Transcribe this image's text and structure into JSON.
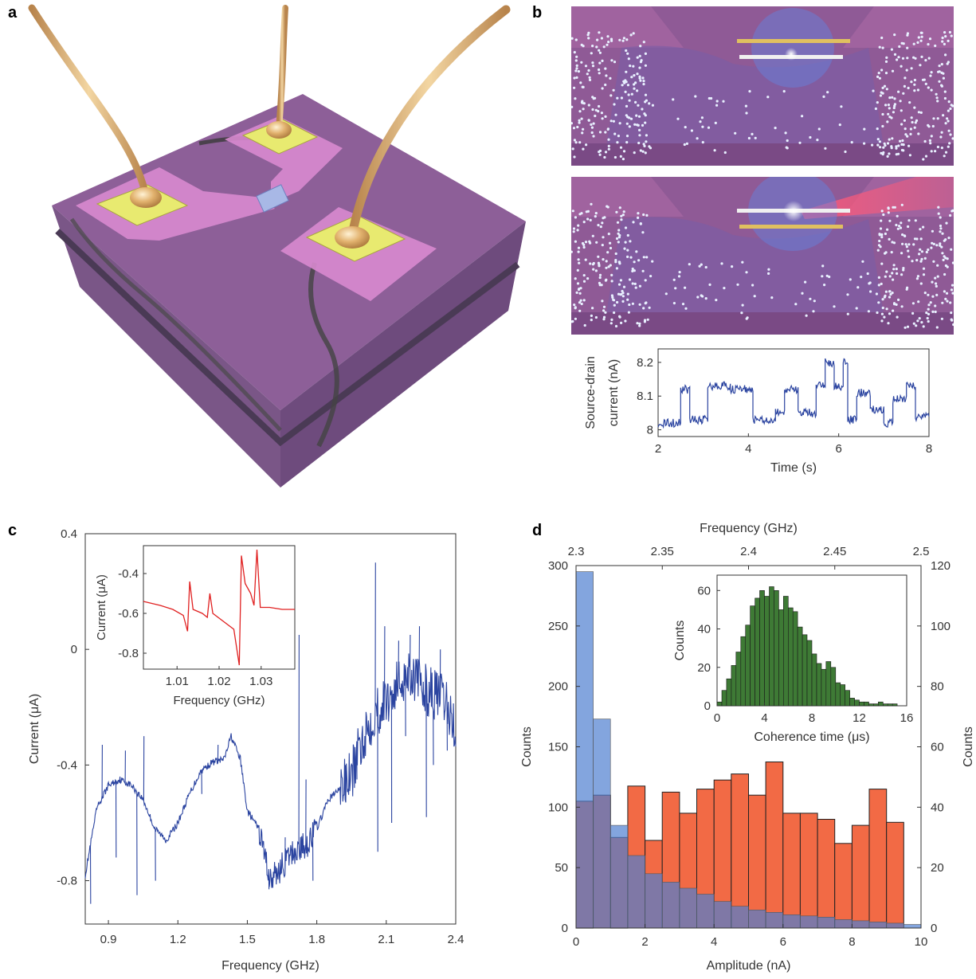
{
  "panels": {
    "a": "a",
    "b": "b",
    "c": "c",
    "d": "d"
  },
  "colors": {
    "blue_trace": "#2b44a0",
    "red_trace": "#e02020",
    "green_hist": "#3e7a35",
    "blue_hist": "#4f7fd0",
    "orange_hist": "#f26a45",
    "chip_purple": "#8c5e96",
    "pad_yellow": "#e9e86a",
    "gold_wire": "#d6a564"
  },
  "chart_data": [
    {
      "id": "b-inset",
      "type": "line",
      "xlabel": "Time (s)",
      "ylabel": "Source-drain current (nA)",
      "ylabel_lines": [
        "Source-drain",
        "current (nA)"
      ],
      "xlim": [
        2,
        8
      ],
      "ylim": [
        7.98,
        8.24
      ],
      "xticks": [
        "2",
        "4",
        "6",
        "8"
      ],
      "yticks": [
        "8",
        "8.1",
        "8.2"
      ],
      "levels": [
        {
          "x0": 2.0,
          "x1": 2.5,
          "y": 8.02
        },
        {
          "x0": 2.5,
          "x1": 2.7,
          "y": 8.12
        },
        {
          "x0": 2.7,
          "x1": 3.1,
          "y": 8.03
        },
        {
          "x0": 3.1,
          "x1": 3.6,
          "y": 8.13
        },
        {
          "x0": 3.6,
          "x1": 4.1,
          "y": 8.12
        },
        {
          "x0": 4.1,
          "x1": 4.6,
          "y": 8.03
        },
        {
          "x0": 4.6,
          "x1": 4.8,
          "y": 8.05
        },
        {
          "x0": 4.8,
          "x1": 5.1,
          "y": 8.12
        },
        {
          "x0": 5.1,
          "x1": 5.5,
          "y": 8.05
        },
        {
          "x0": 5.5,
          "x1": 5.7,
          "y": 8.13
        },
        {
          "x0": 5.7,
          "x1": 5.9,
          "y": 8.2
        },
        {
          "x0": 5.9,
          "x1": 6.1,
          "y": 8.13
        },
        {
          "x0": 6.1,
          "x1": 6.2,
          "y": 8.2
        },
        {
          "x0": 6.2,
          "x1": 6.4,
          "y": 8.03
        },
        {
          "x0": 6.4,
          "x1": 6.7,
          "y": 8.11
        },
        {
          "x0": 6.7,
          "x1": 7.0,
          "y": 8.06
        },
        {
          "x0": 7.0,
          "x1": 7.2,
          "y": 8.02
        },
        {
          "x0": 7.2,
          "x1": 7.5,
          "y": 8.09
        },
        {
          "x0": 7.5,
          "x1": 7.7,
          "y": 8.13
        },
        {
          "x0": 7.7,
          "x1": 8.0,
          "y": 8.04
        }
      ]
    },
    {
      "id": "c-main",
      "type": "line",
      "xlabel": "Frequency (GHz)",
      "ylabel": "Current (μA)",
      "xlim": [
        0.8,
        2.4
      ],
      "ylim": [
        -0.95,
        0.4
      ],
      "xticks": [
        "0.9",
        "1.2",
        "1.5",
        "1.8",
        "2.1",
        "2.4"
      ],
      "yticks": [
        "-0.8",
        "-0.4",
        "0",
        "0.4"
      ],
      "baseline": [
        [
          0.8,
          -0.78
        ],
        [
          0.85,
          -0.55
        ],
        [
          0.9,
          -0.47
        ],
        [
          0.95,
          -0.45
        ],
        [
          1.0,
          -0.47
        ],
        [
          1.05,
          -0.52
        ],
        [
          1.1,
          -0.62
        ],
        [
          1.15,
          -0.66
        ],
        [
          1.2,
          -0.6
        ],
        [
          1.25,
          -0.5
        ],
        [
          1.3,
          -0.42
        ],
        [
          1.35,
          -0.39
        ],
        [
          1.4,
          -0.38
        ],
        [
          1.43,
          -0.3
        ],
        [
          1.47,
          -0.38
        ],
        [
          1.5,
          -0.56
        ],
        [
          1.55,
          -0.62
        ],
        [
          1.6,
          -0.8
        ],
        [
          1.65,
          -0.75
        ],
        [
          1.7,
          -0.7
        ],
        [
          1.75,
          -0.68
        ],
        [
          1.8,
          -0.62
        ],
        [
          1.85,
          -0.52
        ],
        [
          1.9,
          -0.48
        ],
        [
          1.95,
          -0.44
        ],
        [
          2.0,
          -0.3
        ],
        [
          2.05,
          -0.22
        ],
        [
          2.1,
          -0.18
        ],
        [
          2.15,
          -0.12
        ],
        [
          2.2,
          -0.07
        ],
        [
          2.25,
          -0.13
        ],
        [
          2.3,
          -0.15
        ],
        [
          2.35,
          -0.18
        ],
        [
          2.4,
          -0.27
        ]
      ],
      "spikes": [
        [
          0.82,
          -0.88
        ],
        [
          0.87,
          -0.33
        ],
        [
          0.93,
          -0.72
        ],
        [
          0.97,
          -0.35
        ],
        [
          1.02,
          -0.85
        ],
        [
          1.05,
          -0.3
        ],
        [
          1.1,
          -0.8
        ],
        [
          1.3,
          -0.5
        ],
        [
          1.37,
          -0.33
        ],
        [
          1.59,
          -0.83
        ],
        [
          1.66,
          -0.65
        ],
        [
          1.72,
          0.05
        ],
        [
          1.75,
          -0.45
        ],
        [
          1.78,
          -0.8
        ],
        [
          1.92,
          -0.4
        ],
        [
          1.97,
          -0.45
        ],
        [
          2.02,
          -0.3
        ],
        [
          2.05,
          0.3
        ],
        [
          2.06,
          -0.7
        ],
        [
          2.09,
          0.08
        ],
        [
          2.12,
          -0.6
        ],
        [
          2.15,
          0.03
        ],
        [
          2.18,
          -0.3
        ],
        [
          2.2,
          0.05
        ],
        [
          2.24,
          0.08
        ],
        [
          2.27,
          -0.58
        ],
        [
          2.3,
          -0.4
        ],
        [
          2.33,
          0.0
        ],
        [
          2.36,
          -0.35
        ]
      ]
    },
    {
      "id": "c-inset",
      "type": "line",
      "xlabel": "Frequency (GHz)",
      "ylabel": "Current (μA)",
      "xlim": [
        1.002,
        1.038
      ],
      "ylim": [
        -0.88,
        -0.26
      ],
      "xticks": [
        "1.01",
        "1.02",
        "1.03"
      ],
      "yticks": [
        "-0.8",
        "-0.6",
        "-0.4"
      ],
      "values": [
        [
          1.002,
          -0.54
        ],
        [
          1.006,
          -0.56
        ],
        [
          1.009,
          -0.58
        ],
        [
          1.0115,
          -0.61
        ],
        [
          1.0125,
          -0.69
        ],
        [
          1.013,
          -0.44
        ],
        [
          1.0138,
          -0.58
        ],
        [
          1.016,
          -0.6
        ],
        [
          1.0172,
          -0.62
        ],
        [
          1.0178,
          -0.5
        ],
        [
          1.0185,
          -0.6
        ],
        [
          1.021,
          -0.64
        ],
        [
          1.0235,
          -0.68
        ],
        [
          1.0248,
          -0.86
        ],
        [
          1.0253,
          -0.31
        ],
        [
          1.0262,
          -0.45
        ],
        [
          1.0275,
          -0.5
        ],
        [
          1.0283,
          -0.56
        ],
        [
          1.029,
          -0.28
        ],
        [
          1.0298,
          -0.57
        ],
        [
          1.032,
          -0.57
        ],
        [
          1.035,
          -0.58
        ],
        [
          1.038,
          -0.58
        ]
      ]
    },
    {
      "id": "d-main",
      "type": "bar",
      "xlabel": "Amplitude (nA)",
      "ylabel_left": "Counts",
      "top_xlabel": "Frequency (GHz)",
      "ylabel_right": "Counts",
      "xlim": [
        0,
        10
      ],
      "ylim_left": [
        0,
        300
      ],
      "ylim_right": [
        0,
        120
      ],
      "xticks": [
        "0",
        "2",
        "4",
        "6",
        "8",
        "10"
      ],
      "top_xticks": [
        "2.3",
        "2.35",
        "2.4",
        "2.45",
        "2.5"
      ],
      "yticks_left": [
        "0",
        "50",
        "100",
        "150",
        "200",
        "250",
        "300"
      ],
      "yticks_right": [
        "0",
        "20",
        "40",
        "60",
        "80",
        "100",
        "120"
      ],
      "series": [
        {
          "axis": "left",
          "bin_edges_start": 0,
          "bin_width": 0.5,
          "values": [
            295,
            173,
            85,
            60,
            45,
            38,
            33,
            28,
            22,
            18,
            15,
            13,
            11,
            10,
            9,
            7,
            6,
            5,
            4,
            3
          ]
        },
        {
          "axis": "right",
          "bin_edges_start": 2.3,
          "bin_width": 0.01,
          "values": [
            42,
            44,
            30,
            47,
            29,
            45,
            38,
            46,
            49,
            51,
            44,
            55,
            38,
            38,
            36,
            28,
            34,
            46,
            35
          ]
        }
      ]
    },
    {
      "id": "d-inset",
      "type": "bar",
      "xlabel": "Coherence time (μs)",
      "ylabel": "Counts",
      "xlim": [
        0,
        16
      ],
      "ylim": [
        0,
        68
      ],
      "xticks": [
        "0",
        "4",
        "8",
        "12",
        "16"
      ],
      "yticks": [
        "0",
        "20",
        "40",
        "60"
      ],
      "bin_width": 0.4,
      "values": [
        2,
        8,
        14,
        21,
        28,
        36,
        42,
        52,
        56,
        60,
        57,
        62,
        60,
        50,
        57,
        51,
        49,
        41,
        37,
        34,
        27,
        22,
        19,
        23,
        20,
        12,
        11,
        8,
        4,
        3,
        2,
        2,
        1,
        1,
        2,
        1,
        1,
        1,
        0,
        0
      ]
    }
  ]
}
